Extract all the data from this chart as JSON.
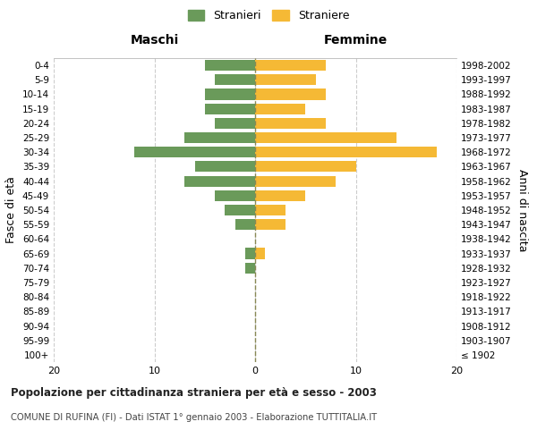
{
  "age_groups": [
    "100+",
    "95-99",
    "90-94",
    "85-89",
    "80-84",
    "75-79",
    "70-74",
    "65-69",
    "60-64",
    "55-59",
    "50-54",
    "45-49",
    "40-44",
    "35-39",
    "30-34",
    "25-29",
    "20-24",
    "15-19",
    "10-14",
    "5-9",
    "0-4"
  ],
  "birth_years": [
    "≤ 1902",
    "1903-1907",
    "1908-1912",
    "1913-1917",
    "1918-1922",
    "1923-1927",
    "1928-1932",
    "1933-1937",
    "1938-1942",
    "1943-1947",
    "1948-1952",
    "1953-1957",
    "1958-1962",
    "1963-1967",
    "1968-1972",
    "1973-1977",
    "1978-1982",
    "1983-1987",
    "1988-1992",
    "1993-1997",
    "1998-2002"
  ],
  "maschi": [
    0,
    0,
    0,
    0,
    0,
    0,
    1,
    1,
    0,
    2,
    3,
    4,
    7,
    6,
    12,
    7,
    4,
    5,
    5,
    4,
    5
  ],
  "femmine": [
    0,
    0,
    0,
    0,
    0,
    0,
    0,
    1,
    0,
    3,
    3,
    5,
    8,
    10,
    18,
    14,
    7,
    5,
    7,
    6,
    7
  ],
  "maschi_color": "#6a9a5a",
  "femmine_color": "#f5b935",
  "title_main": "Popolazione per cittadinanza straniera per età e sesso - 2003",
  "title_sub": "COMUNE DI RUFINA (FI) - Dati ISTAT 1° gennaio 2003 - Elaborazione TUTTITALIA.IT",
  "legend_maschi": "Stranieri",
  "legend_femmine": "Straniere",
  "header_left": "Maschi",
  "header_right": "Femmine",
  "ylabel_left": "Fasce di età",
  "ylabel_right": "Anni di nascita",
  "xlim": 20,
  "background_color": "#ffffff",
  "grid_color": "#cccccc"
}
